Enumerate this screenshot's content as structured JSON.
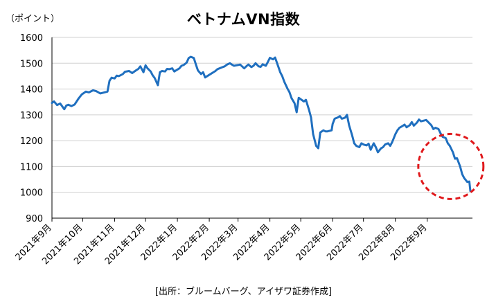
{
  "chart_data": {
    "type": "line",
    "title": "ベトナムVN指数",
    "unit_label": "（ポイント）",
    "source": "[出所：ブルームバーグ、アイザワ証券作成]",
    "ylim": [
      900,
      1600
    ],
    "y_ticks": [
      900,
      1000,
      1100,
      1200,
      1300,
      1400,
      1500,
      1600
    ],
    "x_tick_labels": [
      "2021年9月",
      "2021年10月",
      "2021年11月",
      "2021年12月",
      "2022年1月",
      "2022年2月",
      "2022年3月",
      "2022年4月",
      "2022年5月",
      "2022年6月",
      "2022年7月",
      "2022年8月",
      "2022年9月"
    ],
    "grid": "horizontal",
    "series": [
      {
        "color": "#1f6fbf",
        "points": [
          [
            "2021-09-01",
            1346
          ],
          [
            "2021-09-03",
            1352
          ],
          [
            "2021-09-06",
            1338
          ],
          [
            "2021-09-09",
            1344
          ],
          [
            "2021-09-13",
            1322
          ],
          [
            "2021-09-15",
            1336
          ],
          [
            "2021-09-17",
            1339
          ],
          [
            "2021-09-20",
            1334
          ],
          [
            "2021-09-23",
            1340
          ],
          [
            "2021-09-27",
            1364
          ],
          [
            "2021-09-30",
            1379
          ],
          [
            "2021-10-04",
            1390
          ],
          [
            "2021-10-07",
            1387
          ],
          [
            "2021-10-11",
            1395
          ],
          [
            "2021-10-14",
            1392
          ],
          [
            "2021-10-18",
            1383
          ],
          [
            "2021-10-21",
            1386
          ],
          [
            "2021-10-25",
            1390
          ],
          [
            "2021-10-27",
            1432
          ],
          [
            "2021-10-29",
            1444
          ],
          [
            "2021-11-01",
            1441
          ],
          [
            "2021-11-03",
            1452
          ],
          [
            "2021-11-05",
            1450
          ],
          [
            "2021-11-09",
            1458
          ],
          [
            "2021-11-11",
            1467
          ],
          [
            "2021-11-15",
            1470
          ],
          [
            "2021-11-18",
            1462
          ],
          [
            "2021-11-22",
            1473
          ],
          [
            "2021-11-24",
            1478
          ],
          [
            "2021-11-26",
            1488
          ],
          [
            "2021-11-29",
            1465
          ],
          [
            "2021-12-01",
            1492
          ],
          [
            "2021-12-03",
            1480
          ],
          [
            "2021-12-06",
            1468
          ],
          [
            "2021-12-08",
            1453
          ],
          [
            "2021-12-10",
            1442
          ],
          [
            "2021-12-13",
            1415
          ],
          [
            "2021-12-15",
            1465
          ],
          [
            "2021-12-17",
            1470
          ],
          [
            "2021-12-20",
            1468
          ],
          [
            "2021-12-22",
            1478
          ],
          [
            "2021-12-24",
            1477
          ],
          [
            "2021-12-27",
            1480
          ],
          [
            "2021-12-29",
            1468
          ],
          [
            "2022-01-03",
            1480
          ],
          [
            "2022-01-05",
            1490
          ],
          [
            "2022-01-07",
            1493
          ],
          [
            "2022-01-10",
            1502
          ],
          [
            "2022-01-12",
            1520
          ],
          [
            "2022-01-14",
            1525
          ],
          [
            "2022-01-17",
            1520
          ],
          [
            "2022-01-19",
            1495
          ],
          [
            "2022-01-21",
            1472
          ],
          [
            "2022-01-24",
            1458
          ],
          [
            "2022-01-26",
            1465
          ],
          [
            "2022-01-28",
            1445
          ],
          [
            "2022-02-07",
            1470
          ],
          [
            "2022-02-09",
            1477
          ],
          [
            "2022-02-11",
            1480
          ],
          [
            "2022-02-14",
            1485
          ],
          [
            "2022-02-16",
            1488
          ],
          [
            "2022-02-18",
            1494
          ],
          [
            "2022-02-21",
            1500
          ],
          [
            "2022-02-23",
            1495
          ],
          [
            "2022-02-25",
            1490
          ],
          [
            "2022-03-01",
            1493
          ],
          [
            "2022-03-03",
            1495
          ],
          [
            "2022-03-07",
            1480
          ],
          [
            "2022-03-09",
            1488
          ],
          [
            "2022-03-11",
            1495
          ],
          [
            "2022-03-14",
            1485
          ],
          [
            "2022-03-16",
            1490
          ],
          [
            "2022-03-18",
            1500
          ],
          [
            "2022-03-21",
            1488
          ],
          [
            "2022-03-23",
            1486
          ],
          [
            "2022-03-25",
            1496
          ],
          [
            "2022-03-28",
            1490
          ],
          [
            "2022-03-30",
            1505
          ],
          [
            "2022-04-01",
            1521
          ],
          [
            "2022-04-04",
            1515
          ],
          [
            "2022-04-06",
            1522
          ],
          [
            "2022-04-08",
            1500
          ],
          [
            "2022-04-11",
            1465
          ],
          [
            "2022-04-13",
            1450
          ],
          [
            "2022-04-15",
            1428
          ],
          [
            "2022-04-18",
            1402
          ],
          [
            "2022-04-20",
            1388
          ],
          [
            "2022-04-22",
            1365
          ],
          [
            "2022-04-25",
            1345
          ],
          [
            "2022-04-27",
            1310
          ],
          [
            "2022-04-29",
            1366
          ],
          [
            "2022-05-04",
            1352
          ],
          [
            "2022-05-06",
            1358
          ],
          [
            "2022-05-09",
            1320
          ],
          [
            "2022-05-11",
            1290
          ],
          [
            "2022-05-13",
            1225
          ],
          [
            "2022-05-16",
            1180
          ],
          [
            "2022-05-18",
            1171
          ],
          [
            "2022-05-20",
            1232
          ],
          [
            "2022-05-23",
            1240
          ],
          [
            "2022-05-25",
            1236
          ],
          [
            "2022-05-27",
            1236
          ],
          [
            "2022-05-31",
            1240
          ],
          [
            "2022-06-01",
            1265
          ],
          [
            "2022-06-03",
            1285
          ],
          [
            "2022-06-06",
            1290
          ],
          [
            "2022-06-08",
            1295
          ],
          [
            "2022-06-10",
            1285
          ],
          [
            "2022-06-13",
            1289
          ],
          [
            "2022-06-15",
            1300
          ],
          [
            "2022-06-17",
            1260
          ],
          [
            "2022-06-20",
            1220
          ],
          [
            "2022-06-22",
            1190
          ],
          [
            "2022-06-24",
            1180
          ],
          [
            "2022-06-27",
            1175
          ],
          [
            "2022-06-29",
            1190
          ],
          [
            "2022-07-01",
            1185
          ],
          [
            "2022-07-04",
            1182
          ],
          [
            "2022-07-06",
            1188
          ],
          [
            "2022-07-08",
            1165
          ],
          [
            "2022-07-11",
            1190
          ],
          [
            "2022-07-13",
            1175
          ],
          [
            "2022-07-15",
            1155
          ],
          [
            "2022-07-18",
            1170
          ],
          [
            "2022-07-20",
            1175
          ],
          [
            "2022-07-22",
            1185
          ],
          [
            "2022-07-25",
            1190
          ],
          [
            "2022-07-27",
            1180
          ],
          [
            "2022-07-29",
            1195
          ],
          [
            "2022-08-01",
            1225
          ],
          [
            "2022-08-03",
            1240
          ],
          [
            "2022-08-05",
            1250
          ],
          [
            "2022-08-08",
            1257
          ],
          [
            "2022-08-10",
            1262
          ],
          [
            "2022-08-12",
            1252
          ],
          [
            "2022-08-15",
            1260
          ],
          [
            "2022-08-17",
            1272
          ],
          [
            "2022-08-19",
            1258
          ],
          [
            "2022-08-22",
            1270
          ],
          [
            "2022-08-24",
            1282
          ],
          [
            "2022-08-26",
            1275
          ],
          [
            "2022-08-29",
            1278
          ],
          [
            "2022-08-31",
            1280
          ],
          [
            "2022-09-05",
            1260
          ],
          [
            "2022-09-07",
            1245
          ],
          [
            "2022-09-09",
            1250
          ],
          [
            "2022-09-12",
            1245
          ],
          [
            "2022-09-14",
            1228
          ],
          [
            "2022-09-16",
            1215
          ],
          [
            "2022-09-19",
            1210
          ],
          [
            "2022-09-21",
            1190
          ],
          [
            "2022-09-23",
            1180
          ],
          [
            "2022-09-26",
            1155
          ],
          [
            "2022-09-28",
            1130
          ],
          [
            "2022-09-30",
            1132
          ],
          [
            "2022-10-03",
            1100
          ],
          [
            "2022-10-05",
            1070
          ],
          [
            "2022-10-07",
            1055
          ],
          [
            "2022-10-10",
            1040
          ],
          [
            "2022-10-12",
            1042
          ],
          [
            "2022-10-13",
            1005
          ]
        ]
      }
    ],
    "annotation": {
      "shape": "dashed-circle",
      "color": "#e0191c"
    }
  }
}
